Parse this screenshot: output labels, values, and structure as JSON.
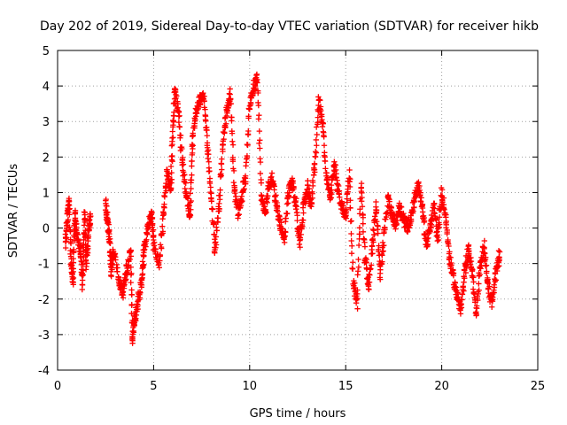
{
  "chart_data": {
    "type": "scatter",
    "title": "Day 202 of 2019, Sidereal Day-to-day VTEC variation (SDTVAR) for receiver hikb",
    "xlabel": "GPS time / hours",
    "ylabel": "SDTVAR / TECUs",
    "xlim": [
      0,
      25
    ],
    "ylim": [
      -4,
      5
    ],
    "xticks": [
      0,
      5,
      10,
      15,
      20,
      25
    ],
    "yticks": [
      -4,
      -3,
      -2,
      -1,
      0,
      1,
      2,
      3,
      4,
      5
    ],
    "grid": true,
    "marker": "+",
    "color": "#ff0000",
    "trend_points": [
      [
        0.4,
        -0.5
      ],
      [
        0.5,
        0.2
      ],
      [
        0.6,
        0.8
      ],
      [
        0.7,
        -0.9
      ],
      [
        0.8,
        -1.5
      ],
      [
        0.9,
        0.4
      ],
      [
        1.0,
        -0.2
      ],
      [
        1.2,
        -0.7
      ],
      [
        1.3,
        -1.6
      ],
      [
        1.4,
        0.5
      ],
      [
        1.5,
        -1.0
      ],
      [
        1.6,
        -0.2
      ],
      [
        1.7,
        0.3
      ],
      [
        2.5,
        0.7
      ],
      [
        2.6,
        0.2
      ],
      [
        2.7,
        -0.3
      ],
      [
        2.8,
        -1.2
      ],
      [
        2.9,
        -0.6
      ],
      [
        3.2,
        -1.5
      ],
      [
        3.4,
        -1.8
      ],
      [
        3.6,
        -1.2
      ],
      [
        3.8,
        -0.7
      ],
      [
        3.9,
        -3.1
      ],
      [
        4.0,
        -2.6
      ],
      [
        4.2,
        -2.0
      ],
      [
        4.4,
        -1.4
      ],
      [
        4.5,
        -0.6
      ],
      [
        4.7,
        0.0
      ],
      [
        4.9,
        0.4
      ],
      [
        5.0,
        -0.5
      ],
      [
        5.3,
        -1.0
      ],
      [
        5.5,
        0.3
      ],
      [
        5.7,
        1.6
      ],
      [
        5.9,
        1.0
      ],
      [
        6.0,
        2.8
      ],
      [
        6.1,
        3.9
      ],
      [
        6.3,
        3.2
      ],
      [
        6.5,
        1.8
      ],
      [
        6.7,
        0.9
      ],
      [
        6.9,
        0.3
      ],
      [
        7.0,
        2.3
      ],
      [
        7.2,
        3.3
      ],
      [
        7.4,
        3.6
      ],
      [
        7.6,
        3.7
      ],
      [
        7.8,
        2.4
      ],
      [
        8.0,
        0.9
      ],
      [
        8.2,
        -0.6
      ],
      [
        8.4,
        0.6
      ],
      [
        8.6,
        2.4
      ],
      [
        8.8,
        3.3
      ],
      [
        9.0,
        3.8
      ],
      [
        9.2,
        1.1
      ],
      [
        9.4,
        0.4
      ],
      [
        9.6,
        0.9
      ],
      [
        9.8,
        1.5
      ],
      [
        10.0,
        3.5
      ],
      [
        10.2,
        4.0
      ],
      [
        10.4,
        4.2
      ],
      [
        10.6,
        0.9
      ],
      [
        10.8,
        0.4
      ],
      [
        11.0,
        1.2
      ],
      [
        11.2,
        1.4
      ],
      [
        11.4,
        0.6
      ],
      [
        11.6,
        0.1
      ],
      [
        11.8,
        -0.4
      ],
      [
        12.0,
        0.9
      ],
      [
        12.2,
        1.3
      ],
      [
        12.4,
        0.7
      ],
      [
        12.6,
        -0.4
      ],
      [
        12.8,
        0.5
      ],
      [
        13.0,
        1.2
      ],
      [
        13.2,
        0.6
      ],
      [
        13.4,
        1.8
      ],
      [
        13.6,
        3.6
      ],
      [
        13.8,
        2.9
      ],
      [
        14.0,
        1.4
      ],
      [
        14.2,
        0.9
      ],
      [
        14.4,
        1.8
      ],
      [
        14.6,
        1.1
      ],
      [
        14.8,
        0.6
      ],
      [
        15.0,
        0.4
      ],
      [
        15.2,
        1.5
      ],
      [
        15.4,
        -1.6
      ],
      [
        15.6,
        -2.1
      ],
      [
        15.8,
        1.2
      ],
      [
        16.0,
        -0.8
      ],
      [
        16.2,
        -1.6
      ],
      [
        16.4,
        -0.4
      ],
      [
        16.6,
        0.6
      ],
      [
        16.8,
        -1.3
      ],
      [
        17.0,
        -0.2
      ],
      [
        17.2,
        0.8
      ],
      [
        17.4,
        0.4
      ],
      [
        17.6,
        0.1
      ],
      [
        17.8,
        0.6
      ],
      [
        18.0,
        0.3
      ],
      [
        18.2,
        0.0
      ],
      [
        18.4,
        0.3
      ],
      [
        18.6,
        0.9
      ],
      [
        18.8,
        1.2
      ],
      [
        19.0,
        0.5
      ],
      [
        19.2,
        -0.5
      ],
      [
        19.4,
        0.0
      ],
      [
        19.6,
        0.6
      ],
      [
        19.8,
        -0.3
      ],
      [
        20.0,
        1.0
      ],
      [
        20.2,
        0.3
      ],
      [
        20.4,
        -0.8
      ],
      [
        20.6,
        -1.4
      ],
      [
        20.8,
        -1.9
      ],
      [
        21.0,
        -2.3
      ],
      [
        21.2,
        -1.2
      ],
      [
        21.4,
        -0.6
      ],
      [
        21.6,
        -1.3
      ],
      [
        21.8,
        -2.4
      ],
      [
        22.0,
        -1.1
      ],
      [
        22.2,
        -0.5
      ],
      [
        22.4,
        -1.6
      ],
      [
        22.6,
        -2.1
      ],
      [
        22.8,
        -1.3
      ],
      [
        23.0,
        -0.8
      ]
    ],
    "note": "Scatter of many '+' markers clustered along the trend points above; values estimated from the plot."
  }
}
